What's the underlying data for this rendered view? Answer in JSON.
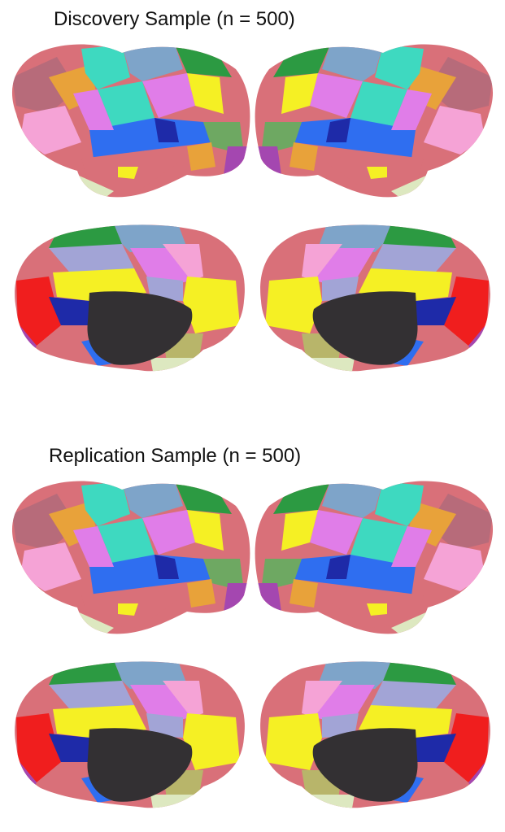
{
  "figure": {
    "panels": [
      {
        "title": "Discovery Sample (n = 500)"
      },
      {
        "title": "Replication Sample (n = 500)"
      }
    ],
    "parcel_colors": {
      "salmon": "#d97079",
      "mauve": "#b76b7a",
      "pink": "#f5a3d6",
      "magenta": "#e07de8",
      "turquoise": "#3ed9c0",
      "blue": "#2f6ef0",
      "navy": "#1e2aa8",
      "yellow": "#f5f024",
      "orange": "#e8a23a",
      "steel": "#7ea4c9",
      "lavender": "#a2a4d6",
      "green": "#2c9a42",
      "sage": "#6ea862",
      "purple": "#a447b0",
      "red": "#f01e1e",
      "olive": "#b8b56a",
      "cream": "#dde8c0",
      "wall": "#333033"
    }
  }
}
